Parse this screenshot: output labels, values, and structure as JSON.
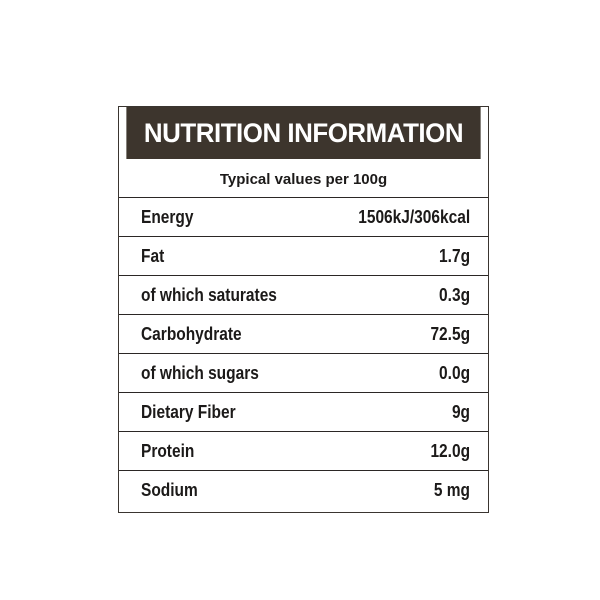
{
  "label": {
    "title": "NUTRITION INFORMATION",
    "subtitle": "Typical values per 100g",
    "rows": [
      {
        "name": "Energy",
        "value": "1506kJ/306kcal"
      },
      {
        "name": "Fat",
        "value": "1.7g"
      },
      {
        "name": "of which saturates",
        "value": "0.3g"
      },
      {
        "name": "Carbohydrate",
        "value": "72.5g"
      },
      {
        "name": "of which sugars",
        "value": "0.0g"
      },
      {
        "name": "Dietary Fiber",
        "value": "9g"
      },
      {
        "name": "Protein",
        "value": "12.0g"
      },
      {
        "name": "Sodium",
        "value": "5 mg"
      }
    ],
    "colors": {
      "header_bg": "#3d352d",
      "header_text": "#ffffff",
      "text": "#1c1a19"
    }
  }
}
